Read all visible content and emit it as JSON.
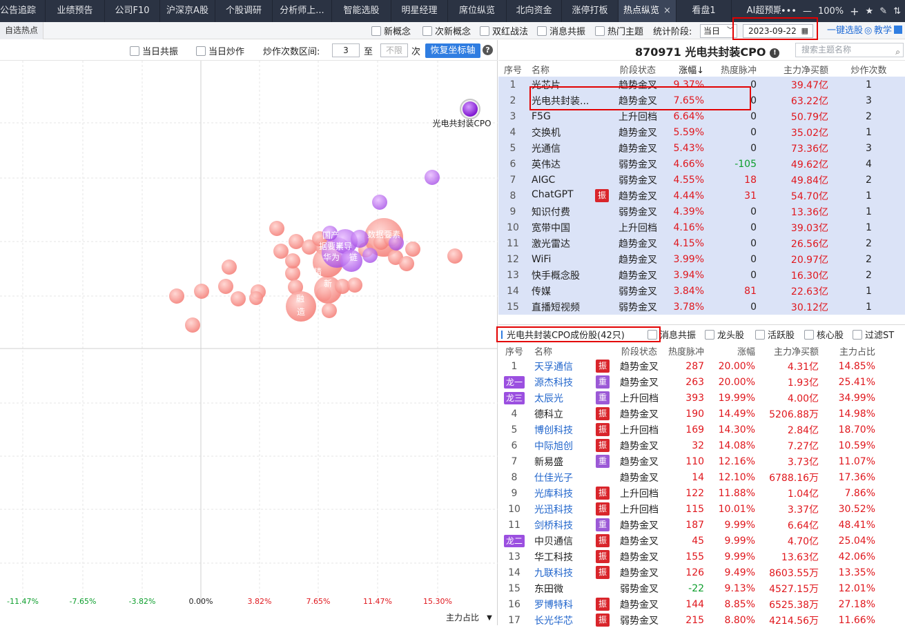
{
  "tabs": [
    "公告追踪",
    "业绩预告",
    "公司F10",
    "沪深京A股",
    "个股调研",
    "分析师上...",
    "智能选股",
    "明星经理",
    "席位纵览",
    "北向资金",
    "涨停打板",
    "热点纵览",
    "看盘1",
    "AI超预期"
  ],
  "active_tab": "热点纵览",
  "window": {
    "more": "•••",
    "minimize": "—",
    "zoom": "100%",
    "zoom_in": "+",
    "star": "★",
    "pen": "✎",
    "split": "⇅"
  },
  "subbar": {
    "left_label": "自选热点",
    "options": [
      "新概念",
      "次新概念",
      "双红战法",
      "消息共振",
      "热门主题"
    ],
    "stat_label": "统计阶段:",
    "stat_value": "当日",
    "date": "2023-09-22",
    "one_key": "一键选股",
    "teach": "教学"
  },
  "left_tools": {
    "opt1": "当日共振",
    "opt2": "当日炒作",
    "range_label": "炒作次数区间:",
    "range_from": "3",
    "to": "至",
    "range_to_placeholder": "不限",
    "times": "次",
    "restore": "恢复坐标轴",
    "help": "?"
  },
  "chart_data": {
    "type": "scatter",
    "x_ticks": [
      "-11.47%",
      "-7.65%",
      "-3.82%",
      "0.00%",
      "3.82%",
      "7.65%",
      "11.47%",
      "15.30%"
    ],
    "selected_label": "光电共封装CPO",
    "bubble_texts": [
      "国产",
      "据要素",
      "半导",
      "华为",
      "数据要素",
      "链",
      "精",
      "新",
      "融",
      "造"
    ],
    "x_axis_label": "主力占比",
    "axis_dropdown": "▼"
  },
  "concept": {
    "code_name": "870971 光电共封装CPO",
    "info_icon": "!",
    "search_placeholder": "搜索主题名称",
    "headers": [
      "序号",
      "名称",
      "阶段状态",
      "涨幅↓",
      "热度脉冲",
      "主力净买额",
      "炒作次数"
    ],
    "rows": [
      {
        "no": "1",
        "name": "光芯片",
        "tag": "",
        "state": "趋势金叉",
        "chg": "9.37%",
        "pulse": "0",
        "net": "39.47亿",
        "times": "1"
      },
      {
        "no": "2",
        "name": "光电共封装...",
        "tag": "",
        "state": "趋势金叉",
        "chg": "7.65%",
        "pulse": "0",
        "net": "63.22亿",
        "times": "3"
      },
      {
        "no": "3",
        "name": "F5G",
        "tag": "",
        "state": "上升回档",
        "chg": "6.64%",
        "pulse": "0",
        "net": "50.79亿",
        "times": "2"
      },
      {
        "no": "4",
        "name": "交换机",
        "tag": "",
        "state": "趋势金叉",
        "chg": "5.59%",
        "pulse": "0",
        "net": "35.02亿",
        "times": "1"
      },
      {
        "no": "5",
        "name": "光通信",
        "tag": "",
        "state": "趋势金叉",
        "chg": "5.43%",
        "pulse": "0",
        "net": "73.36亿",
        "times": "3"
      },
      {
        "no": "6",
        "name": "英伟达",
        "tag": "",
        "state": "弱势金叉",
        "chg": "4.66%",
        "pulse": "-105",
        "net": "49.62亿",
        "times": "4"
      },
      {
        "no": "7",
        "name": "AIGC",
        "tag": "",
        "state": "弱势金叉",
        "chg": "4.55%",
        "pulse": "18",
        "net": "49.84亿",
        "times": "2"
      },
      {
        "no": "8",
        "name": "ChatGPT",
        "tag": "振",
        "state": "趋势金叉",
        "chg": "4.44%",
        "pulse": "31",
        "net": "54.70亿",
        "times": "1"
      },
      {
        "no": "9",
        "name": "知识付费",
        "tag": "",
        "state": "弱势金叉",
        "chg": "4.39%",
        "pulse": "0",
        "net": "13.36亿",
        "times": "1"
      },
      {
        "no": "10",
        "name": "宽带中国",
        "tag": "",
        "state": "上升回档",
        "chg": "4.16%",
        "pulse": "0",
        "net": "39.03亿",
        "times": "1"
      },
      {
        "no": "11",
        "name": "激光雷达",
        "tag": "",
        "state": "趋势金叉",
        "chg": "4.15%",
        "pulse": "0",
        "net": "26.56亿",
        "times": "2"
      },
      {
        "no": "12",
        "name": "WiFi",
        "tag": "",
        "state": "趋势金叉",
        "chg": "3.99%",
        "pulse": "0",
        "net": "20.97亿",
        "times": "2"
      },
      {
        "no": "13",
        "name": "快手概念股",
        "tag": "",
        "state": "趋势金叉",
        "chg": "3.94%",
        "pulse": "0",
        "net": "16.30亿",
        "times": "2"
      },
      {
        "no": "14",
        "name": "传媒",
        "tag": "",
        "state": "弱势金叉",
        "chg": "3.84%",
        "pulse": "81",
        "net": "22.63亿",
        "times": "1"
      },
      {
        "no": "15",
        "name": "直播短视频",
        "tag": "",
        "state": "弱势金叉",
        "chg": "3.78%",
        "pulse": "0",
        "net": "30.12亿",
        "times": "1"
      }
    ]
  },
  "components": {
    "title": "光电共封装CPO成份股(42只)",
    "filters": [
      "消息共振",
      "龙头股",
      "活跃股",
      "核心股",
      "过滤ST"
    ],
    "headers": [
      "序号",
      "名称",
      "阶段状态",
      "热度脉冲",
      "涨幅",
      "主力净买额",
      "主力占比"
    ],
    "rows": [
      {
        "no": "1",
        "long": "",
        "name": "天孚通信",
        "link": true,
        "tag": "振",
        "state": "趋势金叉",
        "pulse": "287",
        "chg": "20.00%",
        "net": "4.31亿",
        "ratio": "14.85%"
      },
      {
        "no": "",
        "long": "龙一",
        "name": "源杰科技",
        "link": true,
        "tag": "重",
        "state": "趋势金叉",
        "pulse": "263",
        "chg": "20.00%",
        "net": "1.93亿",
        "ratio": "25.41%"
      },
      {
        "no": "",
        "long": "龙三",
        "name": "太辰光",
        "link": true,
        "tag": "重",
        "state": "上升回档",
        "pulse": "393",
        "chg": "19.99%",
        "net": "4.00亿",
        "ratio": "34.99%"
      },
      {
        "no": "4",
        "long": "",
        "name": "德科立",
        "link": false,
        "tag": "振",
        "state": "趋势金叉",
        "pulse": "190",
        "chg": "14.49%",
        "net": "5206.88万",
        "ratio": "14.98%"
      },
      {
        "no": "5",
        "long": "",
        "name": "博创科技",
        "link": true,
        "tag": "振",
        "state": "上升回档",
        "pulse": "169",
        "chg": "14.30%",
        "net": "2.84亿",
        "ratio": "18.70%"
      },
      {
        "no": "6",
        "long": "",
        "name": "中际旭创",
        "link": true,
        "tag": "振",
        "state": "趋势金叉",
        "pulse": "32",
        "chg": "14.08%",
        "net": "7.27亿",
        "ratio": "10.59%"
      },
      {
        "no": "7",
        "long": "",
        "name": "新易盛",
        "link": false,
        "tag": "重",
        "state": "趋势金叉",
        "pulse": "110",
        "chg": "12.16%",
        "net": "3.73亿",
        "ratio": "11.07%"
      },
      {
        "no": "8",
        "long": "",
        "name": "仕佳光子",
        "link": true,
        "tag": "",
        "state": "趋势金叉",
        "pulse": "14",
        "chg": "12.10%",
        "net": "6788.16万",
        "ratio": "17.36%"
      },
      {
        "no": "9",
        "long": "",
        "name": "光库科技",
        "link": true,
        "tag": "振",
        "state": "上升回档",
        "pulse": "122",
        "chg": "11.88%",
        "net": "1.04亿",
        "ratio": "7.86%"
      },
      {
        "no": "10",
        "long": "",
        "name": "光迅科技",
        "link": true,
        "tag": "振",
        "state": "上升回档",
        "pulse": "115",
        "chg": "10.01%",
        "net": "3.37亿",
        "ratio": "30.52%"
      },
      {
        "no": "11",
        "long": "",
        "name": "剑桥科技",
        "link": true,
        "tag": "重",
        "state": "趋势金叉",
        "pulse": "187",
        "chg": "9.99%",
        "net": "6.64亿",
        "ratio": "48.41%"
      },
      {
        "no": "",
        "long": "龙二",
        "name": "中贝通信",
        "link": false,
        "tag": "振",
        "state": "趋势金叉",
        "pulse": "45",
        "chg": "9.99%",
        "net": "4.70亿",
        "ratio": "25.04%"
      },
      {
        "no": "13",
        "long": "",
        "name": "华工科技",
        "link": false,
        "tag": "振",
        "state": "趋势金叉",
        "pulse": "155",
        "chg": "9.99%",
        "net": "13.63亿",
        "ratio": "42.06%"
      },
      {
        "no": "14",
        "long": "",
        "name": "九联科技",
        "link": true,
        "tag": "振",
        "state": "趋势金叉",
        "pulse": "126",
        "chg": "9.49%",
        "net": "8603.55万",
        "ratio": "13.35%"
      },
      {
        "no": "15",
        "long": "",
        "name": "东田微",
        "link": false,
        "tag": "",
        "state": "弱势金叉",
        "pulse": "-22",
        "chg": "9.13%",
        "net": "4527.15万",
        "ratio": "12.01%"
      },
      {
        "no": "16",
        "long": "",
        "name": "罗博特科",
        "link": true,
        "tag": "振",
        "state": "趋势金叉",
        "pulse": "144",
        "chg": "8.85%",
        "net": "6525.38万",
        "ratio": "27.18%"
      },
      {
        "no": "17",
        "long": "",
        "name": "长光华芯",
        "link": true,
        "tag": "振",
        "state": "弱势金叉",
        "pulse": "215",
        "chg": "8.80%",
        "net": "4214.56万",
        "ratio": "11.66%"
      }
    ]
  },
  "colors": {
    "accent": "#2f7de1",
    "up": "#e0161c",
    "down": "#0c9e2c",
    "highlight_box": "#e30000",
    "row_selected": "#dbe3f7"
  }
}
